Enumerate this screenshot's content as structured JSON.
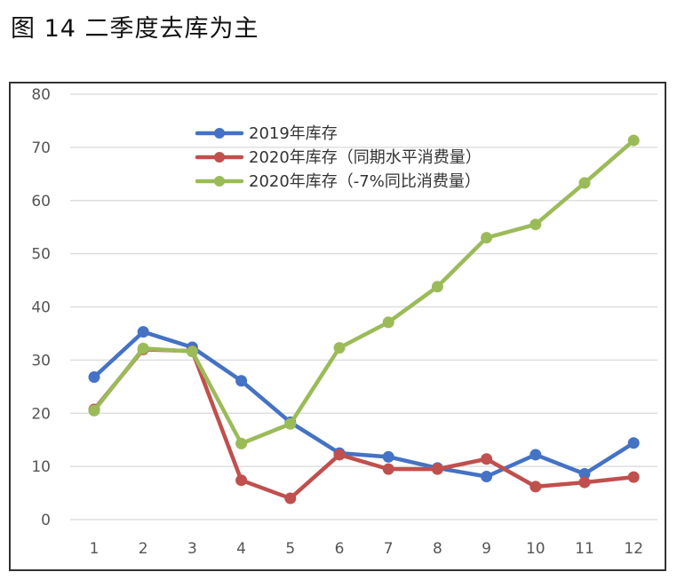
{
  "figure": {
    "title": "图 14  二季度去库为主"
  },
  "chart_data": {
    "type": "line",
    "title": "图 14  二季度去库为主",
    "xlabel": "",
    "ylabel": "",
    "categories": [
      "1",
      "2",
      "3",
      "4",
      "5",
      "6",
      "7",
      "8",
      "9",
      "10",
      "11",
      "12"
    ],
    "ylim": [
      0,
      80
    ],
    "yticks": [
      "0",
      "10",
      "20",
      "30",
      "40",
      "50",
      "60",
      "70",
      "80"
    ],
    "grid": true,
    "legend_position": "top-center",
    "series": [
      {
        "name": "2019年库存",
        "color": "#4472C4",
        "values": [
          26.8,
          35.3,
          32.4,
          26.1,
          18.3,
          12.5,
          11.8,
          9.7,
          8.1,
          12.2,
          8.6,
          14.4
        ]
      },
      {
        "name": "2020年库存（同期水平消费量）",
        "color": "#C0504D",
        "values": [
          20.7,
          32.0,
          31.7,
          7.4,
          4.0,
          12.2,
          9.5,
          9.5,
          11.4,
          6.2,
          7.0,
          8.0
        ]
      },
      {
        "name": "2020年库存（-7%同比消费量）",
        "color": "#9BBB59",
        "values": [
          20.5,
          32.2,
          31.6,
          14.3,
          18.0,
          32.3,
          37.1,
          43.8,
          53.0,
          55.5,
          63.3,
          71.3
        ]
      }
    ]
  }
}
